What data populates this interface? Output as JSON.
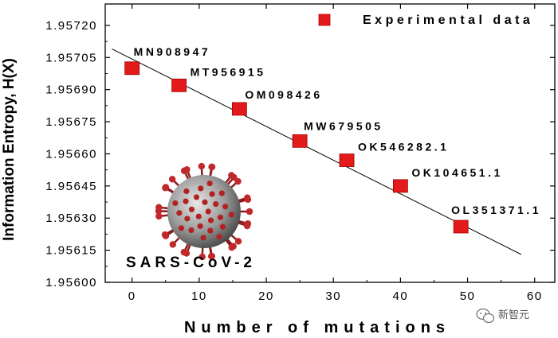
{
  "chart_data": {
    "type": "scatter",
    "title": "",
    "xlabel": "Number of mutations",
    "ylabel": "Information Entropy, H(X)",
    "xlim": [
      -4,
      63
    ],
    "ylim": [
      1.956,
      1.9573
    ],
    "x_ticks": [
      0,
      10,
      20,
      30,
      40,
      50,
      60
    ],
    "y_ticks": [
      1.956,
      1.95615,
      1.9563,
      1.95645,
      1.9566,
      1.95675,
      1.9569,
      1.95705,
      1.9572
    ],
    "y_tick_labels": [
      "1.95600",
      "1.95615",
      "1.95630",
      "1.95645",
      "1.95660",
      "1.95675",
      "1.95690",
      "1.95705",
      "1.95720"
    ],
    "legend": "Experimental data",
    "legend_position": "top-right",
    "series": [
      {
        "name": "Experimental data",
        "color": "#e31a1c",
        "points": [
          {
            "label": "MN908947",
            "x": 0,
            "y": 1.957
          },
          {
            "label": "MT956915",
            "x": 7,
            "y": 1.95692
          },
          {
            "label": "OM098426",
            "x": 16,
            "y": 1.95681
          },
          {
            "label": "MW679505",
            "x": 25,
            "y": 1.95666
          },
          {
            "label": "OK546282.1",
            "x": 32,
            "y": 1.95657
          },
          {
            "label": "OK104651.1",
            "x": 40,
            "y": 1.95645
          },
          {
            "label": "OL351371.1",
            "x": 49,
            "y": 1.95626
          }
        ]
      }
    ],
    "fit_line": {
      "x": [
        -3,
        58
      ],
      "y": [
        1.95709,
        1.95613
      ]
    },
    "inset_label": "SARS-CoV-2"
  },
  "watermark": {
    "text": "新智元",
    "icon": "wechat-icon"
  }
}
